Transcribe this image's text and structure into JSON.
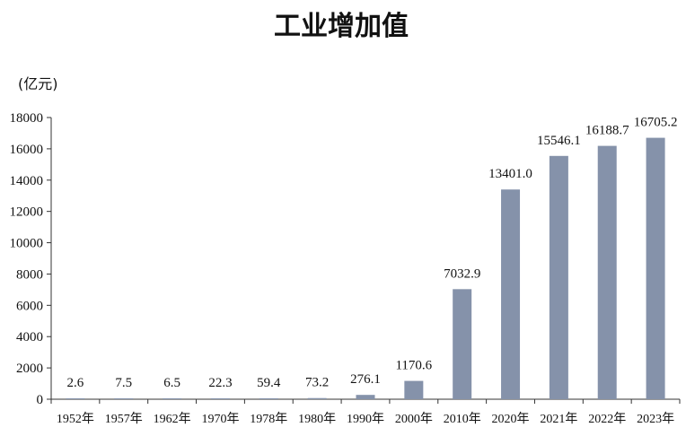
{
  "chart_data": {
    "type": "bar",
    "title": "工业增加值",
    "ylabel": "(亿元)",
    "xlabel": "",
    "categories": [
      "1952年",
      "1957年",
      "1962年",
      "1970年",
      "1978年",
      "1980年",
      "1990年",
      "2000年",
      "2010年",
      "2020年",
      "2021年",
      "2022年",
      "2023年"
    ],
    "values": [
      2.6,
      7.5,
      6.5,
      22.3,
      59.4,
      73.2,
      276.1,
      1170.6,
      7032.9,
      13401.0,
      15546.1,
      16188.7,
      16705.2
    ],
    "data_labels": [
      "2.6",
      "7.5",
      "6.5",
      "22.3",
      "59.4",
      "73.2",
      "276.1",
      "1170.6",
      "7032.9",
      "13401.0",
      "15546.1",
      "16188.7",
      "16705.2"
    ],
    "ylim": [
      0,
      18000
    ],
    "yticks": [
      "0",
      "2000",
      "4000",
      "6000",
      "8000",
      "10000",
      "12000",
      "14000",
      "16000",
      "18000"
    ],
    "grid": false,
    "bar_color": "#8592aa"
  }
}
